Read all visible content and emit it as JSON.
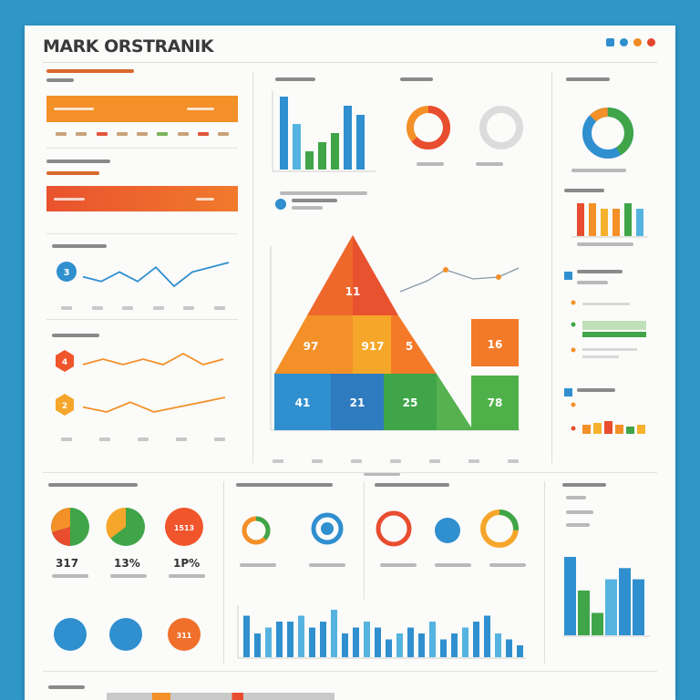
{
  "header": {
    "title": "MARK ORSTRANIK",
    "icon_colors": [
      "#2f8fcf",
      "#2f8fcf",
      "#f08a24",
      "#e4452b"
    ]
  },
  "colors": {
    "orange": "#f39028",
    "red": "#e84d2f",
    "green": "#3fa548",
    "blue": "#2f8fcf",
    "light_blue": "#55b3e0",
    "yellow": "#f6b22d"
  },
  "pyramid": {
    "labels": [
      "11",
      "97",
      "917",
      "5",
      "16",
      "41",
      "21",
      "25",
      "78"
    ]
  },
  "percentages": {
    "left": [
      "317",
      "13%",
      "1P%"
    ]
  },
  "donut_labels": {
    "row1": [
      "",
      "",
      "1513"
    ],
    "row2": [
      "",
      "",
      "311"
    ]
  },
  "bar_values": {
    "top_left": [
      8,
      5,
      2,
      3,
      4,
      7,
      6
    ],
    "top_right": [
      6,
      6,
      5,
      5,
      6,
      5
    ],
    "mid_right": [
      5,
      6,
      7,
      5,
      4,
      5
    ],
    "bottom": [
      7,
      4,
      5,
      6,
      6,
      7,
      5,
      6,
      8,
      4,
      5,
      6,
      5,
      3,
      4,
      5,
      4,
      6,
      3,
      4,
      5,
      6,
      7,
      4,
      3,
      2
    ],
    "bottom_right": [
      7,
      4,
      2,
      5,
      6,
      5
    ]
  },
  "line_values": {
    "line_a": [
      4,
      3,
      5,
      3,
      6,
      2,
      5,
      6,
      7
    ],
    "line_b": [
      3,
      4,
      3,
      4,
      3,
      5,
      3,
      4
    ],
    "line_c": [
      3,
      2,
      4,
      2,
      3,
      4,
      5
    ],
    "line_d": [
      2,
      4,
      6,
      5,
      4,
      6,
      5,
      4
    ]
  }
}
